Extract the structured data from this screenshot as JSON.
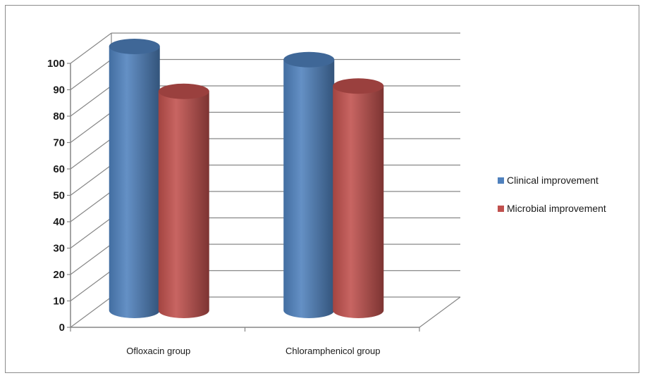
{
  "chart_data": {
    "type": "bar",
    "style": "3d-cylinder",
    "categories": [
      "Ofloxacin group",
      "Chloramphenicol group"
    ],
    "series": [
      {
        "name": "Clinical improvement",
        "values": [
          100,
          95
        ],
        "color": "#4f81bd"
      },
      {
        "name": "Microbial improvement",
        "values": [
          83,
          85
        ],
        "color": "#c0504d"
      }
    ],
    "title": "",
    "xlabel": "",
    "ylabel": "",
    "ylim": [
      0,
      100
    ],
    "yticks": [
      0,
      10,
      20,
      30,
      40,
      50,
      60,
      70,
      80,
      90,
      100
    ],
    "grid": true,
    "legend": "right"
  }
}
